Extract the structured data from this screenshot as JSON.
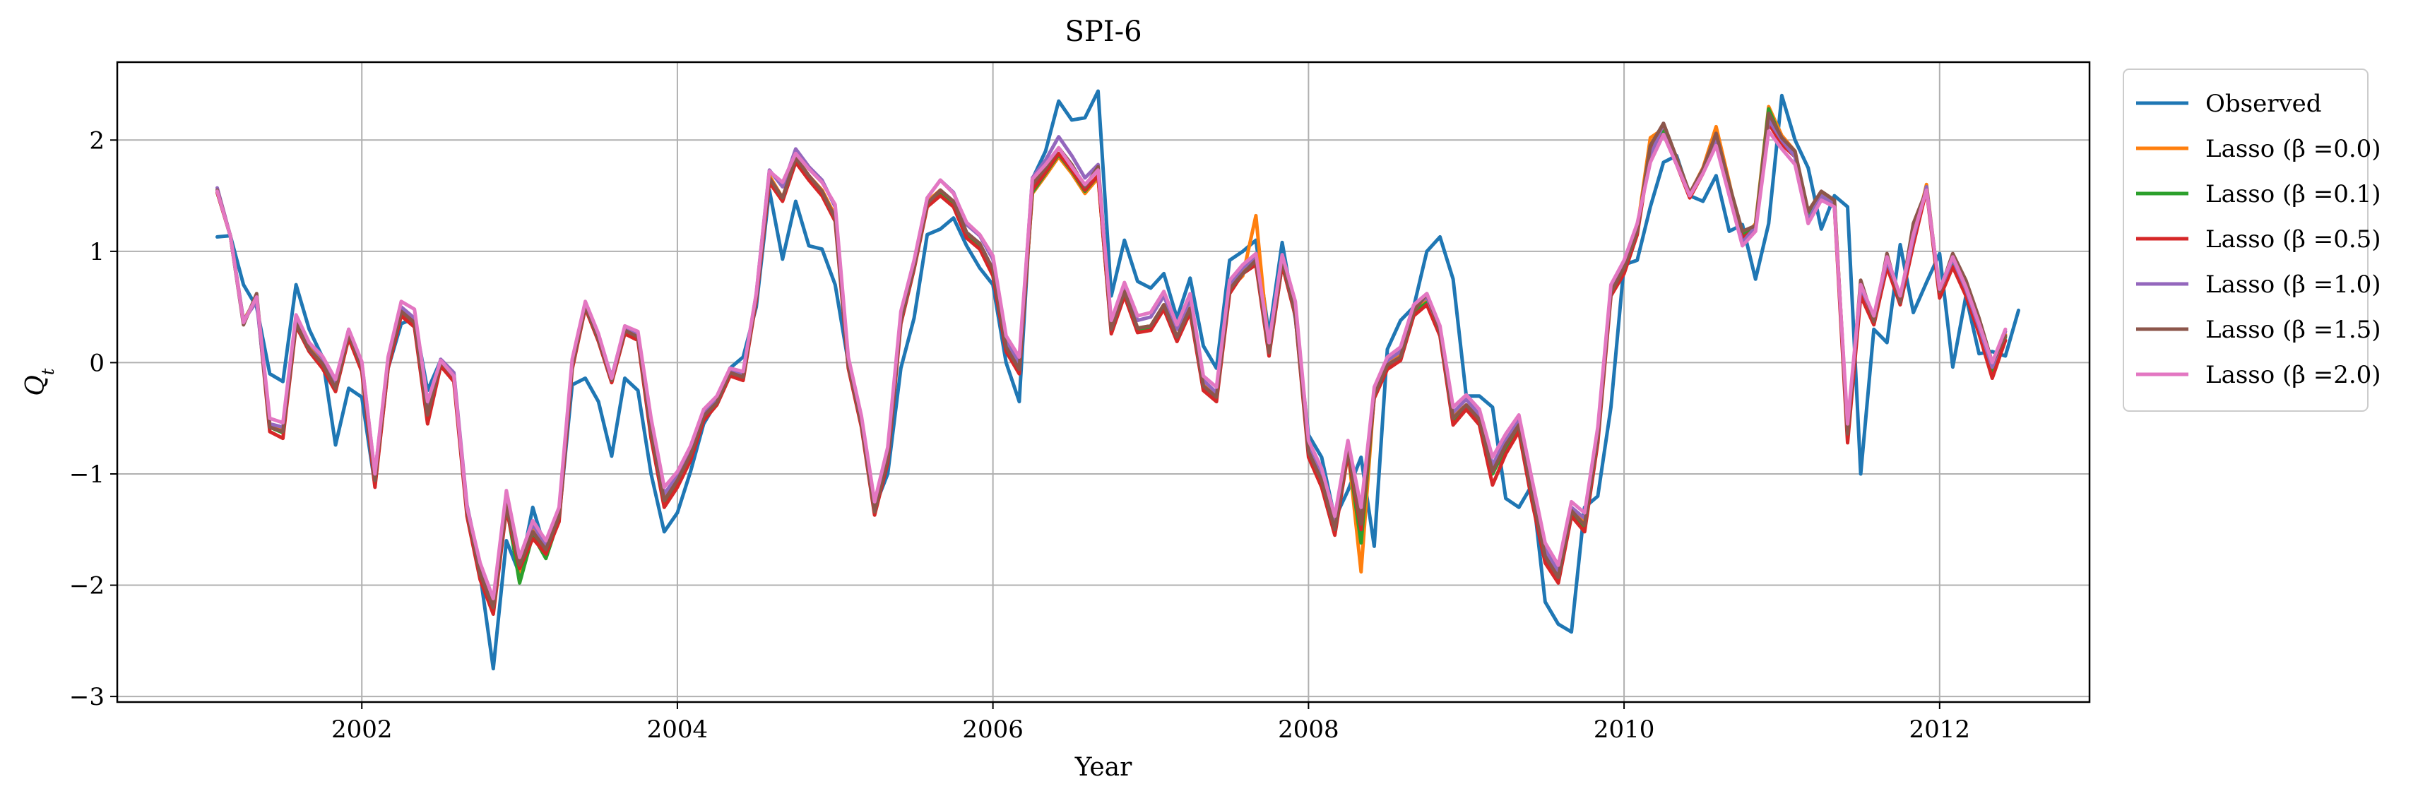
{
  "chart_data": {
    "type": "line",
    "title": "SPI-6",
    "xlabel": "Year",
    "ylabel": "Q_t",
    "xlim": [
      2000.45,
      2012.95
    ],
    "ylim": [
      -3.05,
      2.7
    ],
    "xticks": [
      2002,
      2004,
      2006,
      2008,
      2010,
      2012
    ],
    "xtick_labels": [
      "2002",
      "2004",
      "2006",
      "2008",
      "2010",
      "2012"
    ],
    "yticks": [
      -3,
      -2,
      -1,
      0,
      1,
      2
    ],
    "ytick_labels": [
      "−3",
      "−2",
      "−1",
      "0",
      "1",
      "2"
    ],
    "grid": true,
    "legend_position": "outside-right",
    "x_start": 2001.0833,
    "x_step_months": 1,
    "series": [
      {
        "name": "Observed",
        "color": "#1f77b4",
        "values": [
          1.13,
          1.14,
          0.7,
          0.5,
          -0.1,
          -0.17,
          0.7,
          0.3,
          0.05,
          -0.74,
          -0.23,
          -0.31,
          -1.1,
          -0.05,
          0.35,
          0.4,
          -0.25,
          0.02,
          -0.1,
          -1.35,
          -1.9,
          -2.75,
          -1.6,
          -1.9,
          -1.3,
          -1.7,
          -1.4,
          -0.2,
          -0.14,
          -0.35,
          -0.84,
          -0.14,
          -0.25,
          -1.0,
          -1.52,
          -1.35,
          -0.98,
          -0.55,
          -0.35,
          -0.05,
          0.05,
          0.5,
          1.55,
          0.93,
          1.45,
          1.05,
          1.02,
          0.7,
          0.0,
          -0.5,
          -1.3,
          -1.0,
          -0.05,
          0.4,
          1.15,
          1.2,
          1.3,
          1.05,
          0.85,
          0.7,
          0.0,
          -0.35,
          1.65,
          1.9,
          2.35,
          2.18,
          2.2,
          2.44,
          0.6,
          1.1,
          0.73,
          0.67,
          0.8,
          0.4,
          0.76,
          0.15,
          -0.05,
          0.92,
          1.0,
          1.1,
          0.25,
          1.08,
          0.4,
          -0.65,
          -0.85,
          -1.4,
          -1.15,
          -0.85,
          -1.65,
          0.12,
          0.38,
          0.5,
          1.0,
          1.13,
          0.75,
          -0.3,
          -0.3,
          -0.4,
          -1.22,
          -1.3,
          -1.1,
          -2.15,
          -2.35,
          -2.42,
          -1.3,
          -1.2,
          -0.4,
          0.88,
          0.92,
          1.4,
          1.8,
          1.86,
          1.5,
          1.45,
          1.68,
          1.18,
          1.24,
          0.75,
          1.25,
          2.4,
          2.0,
          1.75,
          1.2,
          1.5,
          1.4,
          -1.0,
          0.3,
          0.18,
          1.06,
          0.45,
          0.72,
          0.98,
          -0.04,
          0.6,
          0.08,
          0.1,
          0.06,
          0.47
        ]
      },
      {
        "name": "Lasso (β =0.0)",
        "color": "#ff7f0e",
        "values": [
          1.53,
          1.14,
          0.38,
          0.58,
          -0.55,
          -0.6,
          0.38,
          0.14,
          0.0,
          -0.2,
          0.27,
          -0.03,
          -1.05,
          0.0,
          0.47,
          0.37,
          -0.45,
          0.02,
          -0.12,
          -1.3,
          -1.88,
          -2.18,
          -1.25,
          -1.88,
          -1.5,
          -1.7,
          -1.38,
          -0.02,
          0.52,
          0.22,
          -0.15,
          0.3,
          0.24,
          -0.6,
          -1.22,
          -1.05,
          -0.82,
          -0.48,
          -0.35,
          -0.08,
          -0.12,
          0.6,
          1.68,
          1.48,
          1.85,
          1.68,
          1.55,
          1.32,
          0.0,
          -0.55,
          -1.32,
          -0.84,
          0.4,
          0.88,
          1.45,
          1.55,
          1.44,
          1.16,
          1.07,
          0.82,
          0.15,
          -0.05,
          1.52,
          1.68,
          1.85,
          1.7,
          1.52,
          1.66,
          0.3,
          0.65,
          0.31,
          0.33,
          0.52,
          0.23,
          0.49,
          -0.2,
          -0.3,
          0.66,
          0.78,
          1.32,
          0.1,
          0.9,
          0.45,
          -0.8,
          -1.05,
          -1.48,
          -0.78,
          -1.88,
          -0.28,
          -0.02,
          0.07,
          0.47,
          0.56,
          0.28,
          -0.48,
          -0.38,
          -0.52,
          -0.95,
          -0.72,
          -0.55,
          -1.15,
          -1.7,
          -1.9,
          -1.32,
          -1.42,
          -0.65,
          0.65,
          0.86,
          1.2,
          2.02,
          2.1,
          1.8,
          1.52,
          1.75,
          2.12,
          1.62,
          1.1,
          1.25,
          2.3,
          2.04,
          1.9,
          1.3,
          1.52,
          1.45,
          -0.62,
          0.66,
          0.38,
          0.9,
          0.55,
          1.1,
          1.6,
          0.62,
          0.9,
          0.65,
          0.3,
          -0.08,
          0.25
        ]
      },
      {
        "name": "Lasso (β =0.1)",
        "color": "#2ca02c",
        "values": [
          1.53,
          1.14,
          0.36,
          0.6,
          -0.58,
          -0.63,
          0.36,
          0.12,
          -0.02,
          -0.22,
          0.25,
          -0.05,
          -1.08,
          -0.02,
          0.45,
          0.35,
          -0.48,
          0.0,
          -0.14,
          -1.33,
          -1.92,
          -2.22,
          -1.28,
          -1.98,
          -1.55,
          -1.76,
          -1.4,
          -0.04,
          0.5,
          0.2,
          -0.17,
          0.28,
          0.22,
          -0.63,
          -1.26,
          -1.08,
          -0.85,
          -0.5,
          -0.37,
          -0.1,
          -0.14,
          0.58,
          1.66,
          1.46,
          1.83,
          1.66,
          1.53,
          1.3,
          -0.02,
          -0.57,
          -1.35,
          -0.87,
          0.38,
          0.86,
          1.43,
          1.53,
          1.42,
          1.14,
          1.05,
          0.8,
          0.13,
          -0.07,
          1.53,
          1.7,
          1.87,
          1.72,
          1.54,
          1.68,
          0.28,
          0.63,
          0.29,
          0.31,
          0.5,
          0.21,
          0.47,
          -0.22,
          -0.32,
          0.64,
          0.8,
          0.92,
          0.08,
          0.88,
          0.43,
          -0.82,
          -1.08,
          -1.52,
          -0.8,
          -1.62,
          -0.3,
          -0.04,
          0.05,
          0.45,
          0.54,
          0.26,
          -0.52,
          -0.4,
          -0.54,
          -1.0,
          -0.76,
          -0.58,
          -1.2,
          -1.75,
          -1.95,
          -1.35,
          -1.48,
          -0.68,
          0.63,
          0.84,
          1.18,
          1.95,
          2.08,
          1.8,
          1.5,
          1.72,
          2.05,
          1.6,
          1.15,
          1.23,
          2.28,
          2.0,
          1.88,
          1.32,
          1.5,
          1.42,
          -0.65,
          0.64,
          0.36,
          0.88,
          0.53,
          1.08,
          1.58,
          0.6,
          0.88,
          0.63,
          0.28,
          -0.1,
          0.23
        ]
      },
      {
        "name": "Lasso (β =0.5)",
        "color": "#d62728",
        "values": [
          1.53,
          1.14,
          0.36,
          0.58,
          -0.62,
          -0.68,
          0.33,
          0.1,
          -0.05,
          -0.26,
          0.22,
          -0.08,
          -1.12,
          -0.05,
          0.42,
          0.32,
          -0.55,
          -0.03,
          -0.17,
          -1.38,
          -1.95,
          -2.26,
          -1.32,
          -1.85,
          -1.58,
          -1.72,
          -1.43,
          -0.06,
          0.49,
          0.19,
          -0.18,
          0.26,
          0.2,
          -0.68,
          -1.3,
          -1.12,
          -0.88,
          -0.52,
          -0.38,
          -0.12,
          -0.16,
          0.56,
          1.62,
          1.45,
          1.8,
          1.64,
          1.5,
          1.27,
          -0.05,
          -0.58,
          -1.37,
          -0.9,
          0.35,
          0.84,
          1.4,
          1.5,
          1.4,
          1.12,
          1.02,
          0.78,
          0.1,
          -0.1,
          1.55,
          1.71,
          1.88,
          1.73,
          1.55,
          1.68,
          0.26,
          0.6,
          0.27,
          0.29,
          0.48,
          0.19,
          0.45,
          -0.25,
          -0.35,
          0.62,
          0.8,
          0.88,
          0.06,
          0.88,
          0.42,
          -0.85,
          -1.12,
          -1.55,
          -0.82,
          -1.5,
          -0.32,
          -0.06,
          0.02,
          0.42,
          0.52,
          0.24,
          -0.56,
          -0.42,
          -0.56,
          -1.1,
          -0.82,
          -0.62,
          -1.25,
          -1.8,
          -1.98,
          -1.38,
          -1.52,
          -0.72,
          0.6,
          0.8,
          1.15,
          1.9,
          2.05,
          1.78,
          1.48,
          1.7,
          2.0,
          1.58,
          1.12,
          1.2,
          2.15,
          1.96,
          1.85,
          1.28,
          1.48,
          1.4,
          -0.72,
          0.6,
          0.34,
          0.86,
          0.52,
          1.06,
          1.55,
          0.58,
          0.86,
          0.6,
          0.26,
          -0.14,
          0.2
        ]
      },
      {
        "name": "Lasso (β =1.0)",
        "color": "#9467bd",
        "values": [
          1.57,
          1.14,
          0.38,
          0.55,
          -0.55,
          -0.58,
          0.4,
          0.18,
          0.04,
          -0.18,
          0.3,
          0.0,
          -1.0,
          0.02,
          0.5,
          0.4,
          -0.4,
          0.03,
          -0.09,
          -1.28,
          -1.83,
          -2.15,
          -1.2,
          -1.8,
          -1.45,
          -1.65,
          -1.33,
          0.01,
          0.54,
          0.24,
          -0.13,
          0.32,
          0.26,
          -0.55,
          -1.18,
          -1.02,
          -0.79,
          -0.44,
          -0.33,
          -0.06,
          -0.1,
          0.62,
          1.73,
          1.58,
          1.92,
          1.76,
          1.64,
          1.4,
          0.02,
          -0.52,
          -1.3,
          -0.8,
          0.42,
          0.9,
          1.48,
          1.64,
          1.53,
          1.24,
          1.14,
          0.93,
          0.2,
          0.0,
          1.66,
          1.82,
          2.03,
          1.86,
          1.66,
          1.78,
          0.34,
          0.7,
          0.38,
          0.41,
          0.6,
          0.3,
          0.57,
          -0.16,
          -0.27,
          0.7,
          0.85,
          0.95,
          0.14,
          0.94,
          0.5,
          -0.75,
          -1.02,
          -1.45,
          -0.74,
          -1.4,
          -0.26,
          0.02,
          0.1,
          0.5,
          0.59,
          0.3,
          -0.45,
          -0.33,
          -0.47,
          -0.92,
          -0.7,
          -0.52,
          -1.12,
          -1.68,
          -1.88,
          -1.3,
          -1.4,
          -0.62,
          0.66,
          0.88,
          1.22,
          1.85,
          2.15,
          1.82,
          1.52,
          1.74,
          2.0,
          1.55,
          1.08,
          1.22,
          2.18,
          2.0,
          1.85,
          1.28,
          1.5,
          1.42,
          -0.6,
          0.68,
          0.4,
          0.92,
          0.58,
          1.12,
          1.58,
          0.64,
          0.93,
          0.66,
          0.32,
          -0.04,
          0.28
        ]
      },
      {
        "name": "Lasso (β =1.5)",
        "color": "#8c564b",
        "values": [
          1.55,
          1.14,
          0.34,
          0.62,
          -0.58,
          -0.62,
          0.35,
          0.12,
          -0.01,
          -0.23,
          0.26,
          -0.04,
          -1.06,
          0.0,
          0.46,
          0.36,
          -0.47,
          0.01,
          -0.13,
          -1.33,
          -1.9,
          -2.2,
          -1.28,
          -1.82,
          -1.52,
          -1.68,
          -1.38,
          -0.03,
          0.51,
          0.21,
          -0.16,
          0.29,
          0.23,
          -0.62,
          -1.24,
          -1.06,
          -0.83,
          -0.48,
          -0.36,
          -0.09,
          -0.13,
          0.59,
          1.66,
          1.48,
          1.84,
          1.68,
          1.54,
          1.3,
          -0.02,
          -0.55,
          -1.34,
          -0.86,
          0.38,
          0.86,
          1.43,
          1.55,
          1.45,
          1.17,
          1.07,
          0.84,
          0.14,
          -0.06,
          1.6,
          1.75,
          1.93,
          1.78,
          1.58,
          1.76,
          0.3,
          0.64,
          0.31,
          0.33,
          0.52,
          0.23,
          0.49,
          -0.21,
          -0.31,
          0.66,
          0.8,
          0.92,
          0.09,
          0.92,
          0.44,
          -0.8,
          -1.06,
          -1.5,
          -0.78,
          -1.45,
          -0.29,
          -0.02,
          0.05,
          0.46,
          0.62,
          0.28,
          -0.5,
          -0.38,
          -0.51,
          -0.98,
          -0.74,
          -0.56,
          -1.18,
          -1.74,
          -1.93,
          -1.33,
          -1.46,
          -0.67,
          0.63,
          0.85,
          1.18,
          1.95,
          2.15,
          1.84,
          1.52,
          1.74,
          2.06,
          1.6,
          1.18,
          1.23,
          2.24,
          2.02,
          1.9,
          1.36,
          1.54,
          1.46,
          -0.64,
          0.74,
          0.37,
          0.98,
          0.54,
          1.25,
          1.55,
          0.64,
          0.98,
          0.74,
          0.4,
          0.0,
          0.24
        ]
      },
      {
        "name": "Lasso (β =2.0)",
        "color": "#e377c2",
        "values": [
          1.54,
          1.14,
          0.36,
          0.59,
          -0.5,
          -0.54,
          0.43,
          0.18,
          0.06,
          -0.15,
          0.3,
          0.01,
          -1.0,
          0.05,
          0.55,
          0.48,
          -0.35,
          0.02,
          -0.12,
          -1.3,
          -1.8,
          -2.12,
          -1.15,
          -1.75,
          -1.42,
          -1.6,
          -1.3,
          0.03,
          0.55,
          0.26,
          -0.14,
          0.33,
          0.28,
          -0.5,
          -1.12,
          -0.98,
          -0.75,
          -0.42,
          -0.3,
          -0.05,
          -0.08,
          0.62,
          1.72,
          1.62,
          1.88,
          1.74,
          1.62,
          1.42,
          0.05,
          -0.48,
          -1.25,
          -0.76,
          0.46,
          0.92,
          1.48,
          1.64,
          1.52,
          1.26,
          1.15,
          0.96,
          0.24,
          0.05,
          1.65,
          1.78,
          1.93,
          1.76,
          1.6,
          1.73,
          0.38,
          0.72,
          0.42,
          0.45,
          0.64,
          0.34,
          0.62,
          -0.12,
          -0.22,
          0.74,
          0.88,
          0.98,
          0.18,
          0.97,
          0.55,
          -0.7,
          -0.95,
          -1.38,
          -0.7,
          -1.3,
          -0.22,
          0.05,
          0.14,
          0.52,
          0.62,
          0.33,
          -0.4,
          -0.29,
          -0.42,
          -0.85,
          -0.64,
          -0.47,
          -1.05,
          -1.62,
          -1.82,
          -1.25,
          -1.35,
          -0.58,
          0.7,
          0.92,
          1.25,
          1.8,
          2.05,
          1.78,
          1.5,
          1.7,
          1.95,
          1.5,
          1.05,
          1.18,
          2.08,
          1.92,
          1.78,
          1.25,
          1.46,
          1.4,
          -0.55,
          0.7,
          0.42,
          0.95,
          0.6,
          1.15,
          1.55,
          0.66,
          0.95,
          0.68,
          0.35,
          0.0,
          0.3
        ]
      }
    ]
  }
}
